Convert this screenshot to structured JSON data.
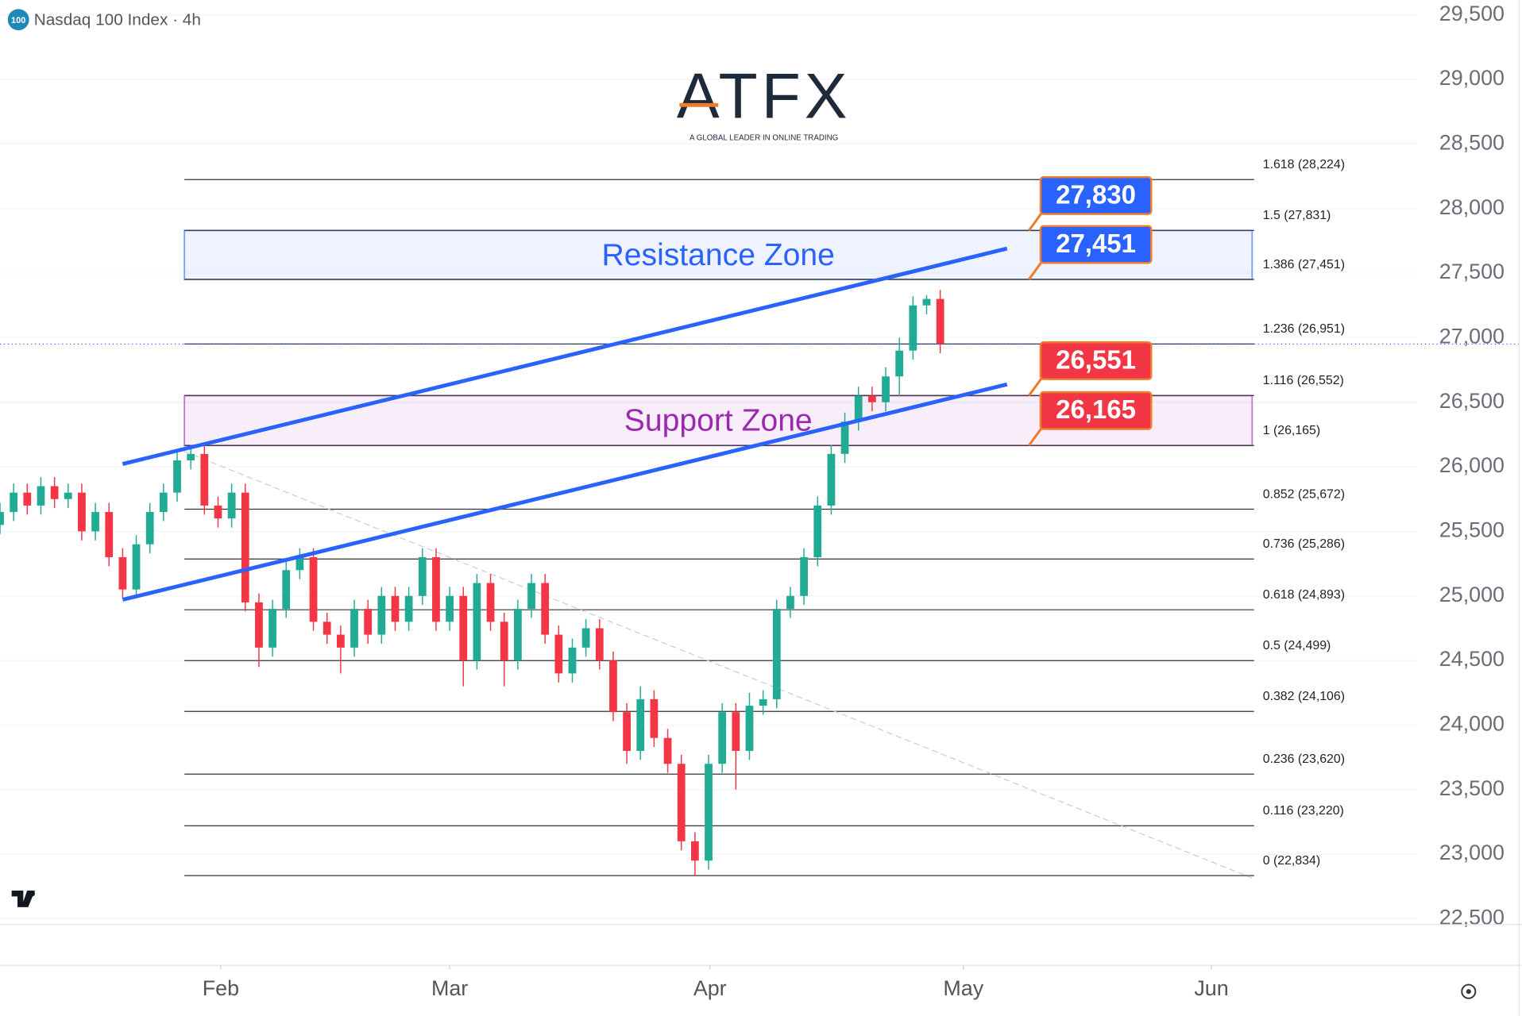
{
  "chart_data": {
    "type": "candlestick",
    "symbol_badge": "100",
    "title": "Nasdaq 100 Index · 4h",
    "up_color": "#22ab94",
    "down_color": "#f23645",
    "open": [
      25550,
      25650,
      25800,
      25700,
      25850,
      25750,
      25800,
      25500,
      25650,
      25300,
      25050,
      25400,
      25650,
      25800,
      26050,
      26100,
      25700,
      25600,
      25800,
      24950,
      24600,
      24900,
      25200,
      25300,
      24800,
      24700,
      24600,
      24900,
      24700,
      25000,
      24800,
      25000,
      25300,
      24800,
      25000,
      24500,
      25100,
      24800,
      24500,
      24900,
      25100,
      24700,
      24400,
      24600,
      24750,
      24500,
      24100,
      23800,
      24200,
      23900,
      23700,
      23100,
      22950,
      23700,
      24100,
      23800,
      24150,
      24200,
      24900,
      25000,
      25300,
      25700,
      26100,
      26350,
      26550,
      26500,
      26700,
      26900,
      27250,
      27300
    ],
    "high": [
      25720,
      25870,
      25870,
      25920,
      25920,
      25870,
      25870,
      25720,
      25720,
      25370,
      25470,
      25720,
      25870,
      26120,
      26170,
      26170,
      25770,
      25870,
      25870,
      25020,
      24970,
      25270,
      25370,
      25370,
      24870,
      24770,
      24970,
      24970,
      25070,
      25070,
      25070,
      25370,
      25370,
      25070,
      25070,
      25170,
      25170,
      24870,
      24970,
      25170,
      25170,
      24770,
      24670,
      24820,
      24820,
      24570,
      24170,
      24300,
      24270,
      23970,
      23770,
      23170,
      23770,
      24170,
      24170,
      24250,
      24270,
      24970,
      25070,
      25370,
      25770,
      26170,
      26420,
      26620,
      26620,
      26770,
      27000,
      27320,
      27330,
      27370
    ],
    "low": [
      25480,
      25580,
      25630,
      25630,
      25680,
      25680,
      25430,
      25430,
      25230,
      24980,
      24980,
      25330,
      25580,
      25730,
      25980,
      25630,
      25530,
      25530,
      24880,
      24450,
      24530,
      24830,
      25130,
      24730,
      24630,
      24400,
      24530,
      24630,
      24630,
      24730,
      24730,
      24930,
      24730,
      24730,
      24300,
      24430,
      24730,
      24300,
      24430,
      24830,
      24630,
      24330,
      24330,
      24530,
      24430,
      24030,
      23700,
      23730,
      23830,
      23630,
      23030,
      22830,
      22880,
      23630,
      23500,
      23730,
      24080,
      24130,
      24830,
      24930,
      25230,
      25630,
      26030,
      26280,
      26430,
      26430,
      26550,
      26830,
      27180,
      26880
    ],
    "close": [
      25650,
      25800,
      25700,
      25850,
      25750,
      25800,
      25500,
      25650,
      25300,
      25050,
      25400,
      25650,
      25800,
      26050,
      26100,
      25700,
      25600,
      25800,
      24950,
      24600,
      24900,
      25200,
      25300,
      24800,
      24700,
      24600,
      24900,
      24700,
      25000,
      24800,
      25000,
      25300,
      24800,
      25000,
      24500,
      25100,
      24800,
      24500,
      24900,
      25100,
      24700,
      24400,
      24600,
      24750,
      24500,
      24100,
      23800,
      24200,
      23900,
      23700,
      23100,
      22950,
      23700,
      24100,
      23800,
      24150,
      24200,
      24900,
      25000,
      25300,
      25700,
      26100,
      26350,
      26550,
      26500,
      26700,
      26900,
      27250,
      27300,
      26950
    ],
    "xlim": [
      0,
      104
    ],
    "xticks": [
      {
        "value": 16.2,
        "label": "Feb"
      },
      {
        "value": 33.0,
        "label": "Mar"
      },
      {
        "value": 52.1,
        "label": "Apr"
      },
      {
        "value": 70.7,
        "label": "May"
      },
      {
        "value": 88.9,
        "label": "Jun"
      }
    ],
    "ylim": [
      22455,
      29613
    ],
    "yticks": [
      {
        "value": 22500,
        "label": "22,500"
      },
      {
        "value": 23000,
        "label": "23,000"
      },
      {
        "value": 23500,
        "label": "23,500"
      },
      {
        "value": 24000,
        "label": "24,000"
      },
      {
        "value": 24500,
        "label": "24,500"
      },
      {
        "value": 25000,
        "label": "25,000"
      },
      {
        "value": 25500,
        "label": "25,500"
      },
      {
        "value": 26000,
        "label": "26,000"
      },
      {
        "value": 26500,
        "label": "26,500"
      },
      {
        "value": 27000,
        "label": "27,000"
      },
      {
        "value": 27500,
        "label": "27,500"
      },
      {
        "value": 28000,
        "label": "28,000"
      },
      {
        "value": 28500,
        "label": "28,500"
      },
      {
        "value": 29000,
        "label": "29,000"
      },
      {
        "value": 29500,
        "label": "29,500"
      }
    ],
    "grid": true,
    "fib_levels": [
      {
        "label": "1.618 (28,224)",
        "value": 28224
      },
      {
        "label": "1.5 (27,831)",
        "value": 27831
      },
      {
        "label": "1.386 (27,451)",
        "value": 27451
      },
      {
        "label": "1.236 (26,951)",
        "value": 26951
      },
      {
        "label": "1.116 (26,552)",
        "value": 26552
      },
      {
        "label": "1 (26,165)",
        "value": 26165
      },
      {
        "label": "0.852 (25,672)",
        "value": 25672
      },
      {
        "label": "0.736 (25,286)",
        "value": 25286
      },
      {
        "label": "0.618 (24,893)",
        "value": 24893
      },
      {
        "label": "0.5 (24,499)",
        "value": 24499
      },
      {
        "label": "0.382 (24,106)",
        "value": 24106
      },
      {
        "label": "0.236 (23,620)",
        "value": 23620
      },
      {
        "label": "0.116 (23,220)",
        "value": 23220
      },
      {
        "label": "0 (22,834)",
        "value": 22834
      }
    ],
    "zones": [
      {
        "label": "Resistance Zone",
        "low": 27451,
        "high": 27830,
        "color": "#2962ff"
      },
      {
        "label": "Support Zone",
        "low": 26165,
        "high": 26551,
        "color": "#9c27b0"
      }
    ],
    "price_tags": [
      {
        "value": 27830,
        "label": "27,830",
        "color": "#2962ff"
      },
      {
        "value": 27451,
        "label": "27,451",
        "color": "#2962ff"
      },
      {
        "value": 26551,
        "label": "26,551",
        "color": "#f23645"
      },
      {
        "value": 26165,
        "label": "26,165",
        "color": "#f23645"
      }
    ],
    "trend_lines": [
      {
        "x": [
          9,
          73.9
        ],
        "y": [
          26022,
          27690
        ],
        "color": "#2962ff"
      },
      {
        "x": [
          9,
          73.9
        ],
        "y": [
          24971,
          26638
        ],
        "color": "#2962ff"
      }
    ],
    "guide_line": {
      "x": [
        13.5,
        91.9
      ],
      "y": [
        26120,
        22815
      ]
    }
  },
  "logo": {
    "name": "ATFX",
    "tagline": "A GLOBAL LEADER IN ONLINE TRADING"
  }
}
